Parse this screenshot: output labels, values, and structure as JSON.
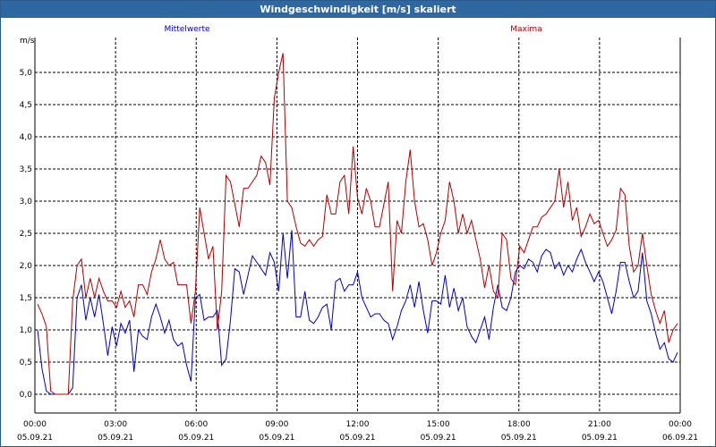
{
  "window": {
    "title": "Windgeschwindigkeit [m/s] skaliert"
  },
  "chart_data": {
    "type": "line",
    "title": "Windgeschwindigkeit [m/s] skaliert",
    "ylabel": "m/s",
    "xlabel": "",
    "ylim": [
      0,
      5.6
    ],
    "xlim": [
      0,
      24
    ],
    "grid": true,
    "legend_position": "top",
    "y_ticks": [
      "0,0",
      "0,5",
      "1,0",
      "1,5",
      "2,0",
      "2,5",
      "3,0",
      "3,5",
      "4,0",
      "4,5",
      "5,0"
    ],
    "x_ticks": [
      {
        "time": "00:00",
        "date": "05.09.21"
      },
      {
        "time": "03:00",
        "date": "05.09.21"
      },
      {
        "time": "06:00",
        "date": "05.09.21"
      },
      {
        "time": "09:00",
        "date": "05.09.21"
      },
      {
        "time": "12:00",
        "date": "05.09.21"
      },
      {
        "time": "15:00",
        "date": "05.09.21"
      },
      {
        "time": "18:00",
        "date": "05.09.21"
      },
      {
        "time": "21:00",
        "date": "05.09.21"
      },
      {
        "time": "00:00",
        "date": "06.09.21"
      }
    ],
    "series": [
      {
        "name": "Mittelwerte",
        "color": "#0000c0",
        "values": [
          1.0,
          0.4,
          0.05,
          0.0,
          0.0,
          0.0,
          0.0,
          0.0,
          0.1,
          1.5,
          1.7,
          1.15,
          1.5,
          1.2,
          1.55,
          1.1,
          0.6,
          1.05,
          0.75,
          1.1,
          0.95,
          1.15,
          0.35,
          1.0,
          0.9,
          0.85,
          1.2,
          1.4,
          1.2,
          0.95,
          1.15,
          0.85,
          0.75,
          0.8,
          0.45,
          0.2,
          1.5,
          1.55,
          1.15,
          1.2,
          1.2,
          1.3,
          0.45,
          0.55,
          1.15,
          1.95,
          1.9,
          1.55,
          1.85,
          2.15,
          2.05,
          1.95,
          1.85,
          2.2,
          2.05,
          1.6,
          2.5,
          1.8,
          2.55,
          1.2,
          1.2,
          1.6,
          1.15,
          1.1,
          1.2,
          1.35,
          1.4,
          1.0,
          1.75,
          1.8,
          1.6,
          1.7,
          1.7,
          1.9,
          1.5,
          1.35,
          1.2,
          1.25,
          1.25,
          1.15,
          1.1,
          0.85,
          1.05,
          1.3,
          1.45,
          1.7,
          1.35,
          1.75,
          1.3,
          0.95,
          1.45,
          1.45,
          1.4,
          1.85,
          1.35,
          1.65,
          1.3,
          1.5,
          1.05,
          0.9,
          0.8,
          1.0,
          1.2,
          0.85,
          1.35,
          1.7,
          1.35,
          1.3,
          1.5,
          1.9,
          2.0,
          1.95,
          2.1,
          2.05,
          1.9,
          2.15,
          2.25,
          2.2,
          1.95,
          2.05,
          1.85,
          2.0,
          1.9,
          2.1,
          2.25,
          2.05,
          1.9,
          1.75,
          1.9,
          1.75,
          1.5,
          1.25,
          1.6,
          2.05,
          2.05,
          1.75,
          1.5,
          1.6,
          2.2,
          1.45,
          1.25,
          0.95,
          0.7,
          0.8,
          0.55,
          0.5,
          0.65
        ]
      },
      {
        "name": "Maxima",
        "color": "#b00000",
        "values": [
          1.4,
          1.25,
          1.05,
          0.05,
          0.0,
          0.0,
          0.0,
          0.0,
          1.45,
          2.0,
          2.1,
          1.5,
          1.8,
          1.5,
          1.8,
          1.6,
          1.45,
          1.45,
          1.35,
          1.6,
          1.35,
          1.45,
          1.2,
          1.7,
          1.7,
          1.55,
          1.9,
          2.1,
          2.4,
          2.1,
          2.0,
          2.05,
          1.7,
          1.7,
          1.7,
          1.1,
          1.6,
          2.9,
          2.5,
          2.1,
          2.3,
          1.0,
          1.6,
          3.4,
          3.3,
          2.95,
          2.6,
          3.2,
          3.2,
          3.3,
          3.4,
          3.7,
          3.6,
          3.25,
          4.6,
          5.0,
          5.3,
          3.0,
          2.9,
          2.6,
          2.35,
          2.3,
          2.4,
          2.3,
          2.4,
          2.45,
          3.1,
          2.8,
          2.8,
          3.3,
          3.4,
          2.8,
          3.85,
          3.05,
          2.8,
          3.2,
          3.0,
          2.6,
          2.6,
          2.95,
          3.3,
          1.6,
          2.7,
          2.5,
          3.3,
          3.8,
          3.0,
          2.6,
          2.65,
          2.4,
          2.0,
          2.2,
          2.5,
          2.7,
          3.3,
          3.0,
          2.5,
          2.8,
          2.5,
          2.7,
          2.4,
          2.1,
          1.65,
          2.0,
          1.6,
          1.5,
          2.5,
          2.4,
          1.8,
          1.7,
          2.3,
          2.2,
          2.4,
          2.6,
          2.6,
          2.75,
          2.8,
          2.9,
          3.0,
          3.5,
          2.9,
          3.3,
          2.7,
          2.9,
          2.45,
          2.6,
          2.8,
          2.65,
          2.7,
          2.5,
          2.3,
          2.4,
          2.55,
          3.2,
          3.1,
          2.3,
          1.9,
          2.0,
          2.5,
          2.0,
          1.55,
          1.3,
          1.1,
          1.3,
          0.8,
          1.0,
          1.1
        ]
      }
    ]
  }
}
